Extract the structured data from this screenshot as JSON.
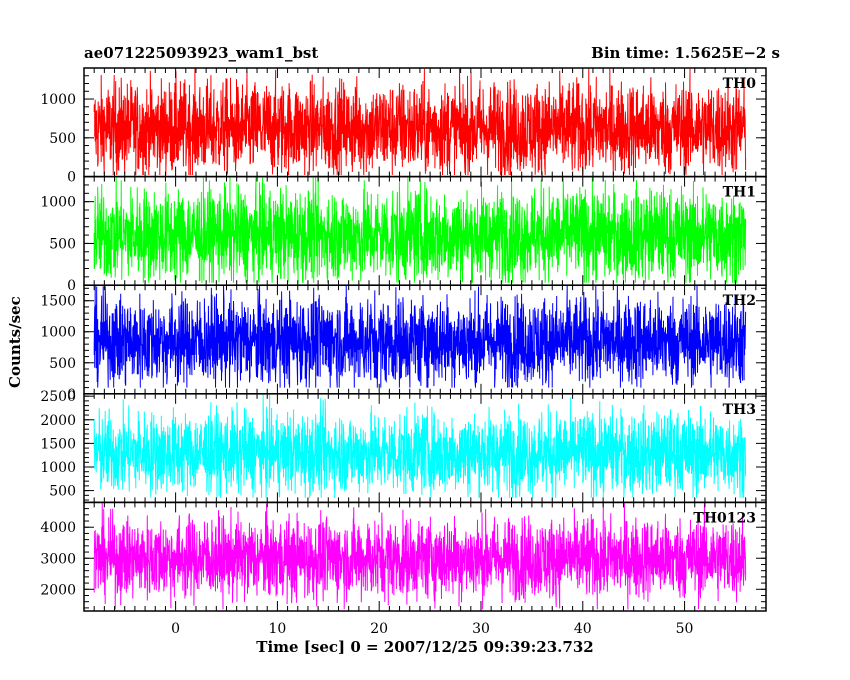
{
  "header": {
    "title_left": "ae071225093923_wam1_bst",
    "title_right": "Bin time: 1.5625E−2 s"
  },
  "chart_data": {
    "type": "line",
    "xlabel": "Time [sec] 0 = 2007/12/25 09:39:23.732",
    "ylabel": "Counts/sec",
    "xlim": [
      -9,
      58
    ],
    "x_ticks": [
      0,
      10,
      20,
      30,
      40,
      50
    ],
    "x_data_range": [
      -8,
      56
    ],
    "panels": [
      {
        "name": "TH0",
        "color": "#ff0000",
        "ylim": [
          0,
          1400
        ],
        "y_ticks": [
          0,
          500,
          1000
        ],
        "baseline": 620,
        "spread": 300,
        "min": 20,
        "max": 1390
      },
      {
        "name": "TH1",
        "color": "#00ff00",
        "ylim": [
          0,
          1300
        ],
        "y_ticks": [
          0,
          500,
          1000
        ],
        "baseline": 600,
        "spread": 280,
        "min": 30,
        "max": 1300
      },
      {
        "name": "TH2",
        "color": "#0000ff",
        "ylim": [
          0,
          1750
        ],
        "y_ticks": [
          0,
          500,
          1000,
          1500
        ],
        "baseline": 850,
        "spread": 360,
        "min": 100,
        "max": 1750
      },
      {
        "name": "TH3",
        "color": "#00ffff",
        "ylim": [
          250,
          2550
        ],
        "y_ticks": [
          500,
          1000,
          1500,
          2000,
          2500
        ],
        "baseline": 1300,
        "spread": 430,
        "min": 350,
        "max": 2550
      },
      {
        "name": "TH0123",
        "color": "#ff00ff",
        "ylim": [
          1300,
          4800
        ],
        "y_ticks": [
          2000,
          3000,
          4000
        ],
        "baseline": 3000,
        "spread": 650,
        "min": 1350,
        "max": 4800
      }
    ]
  }
}
